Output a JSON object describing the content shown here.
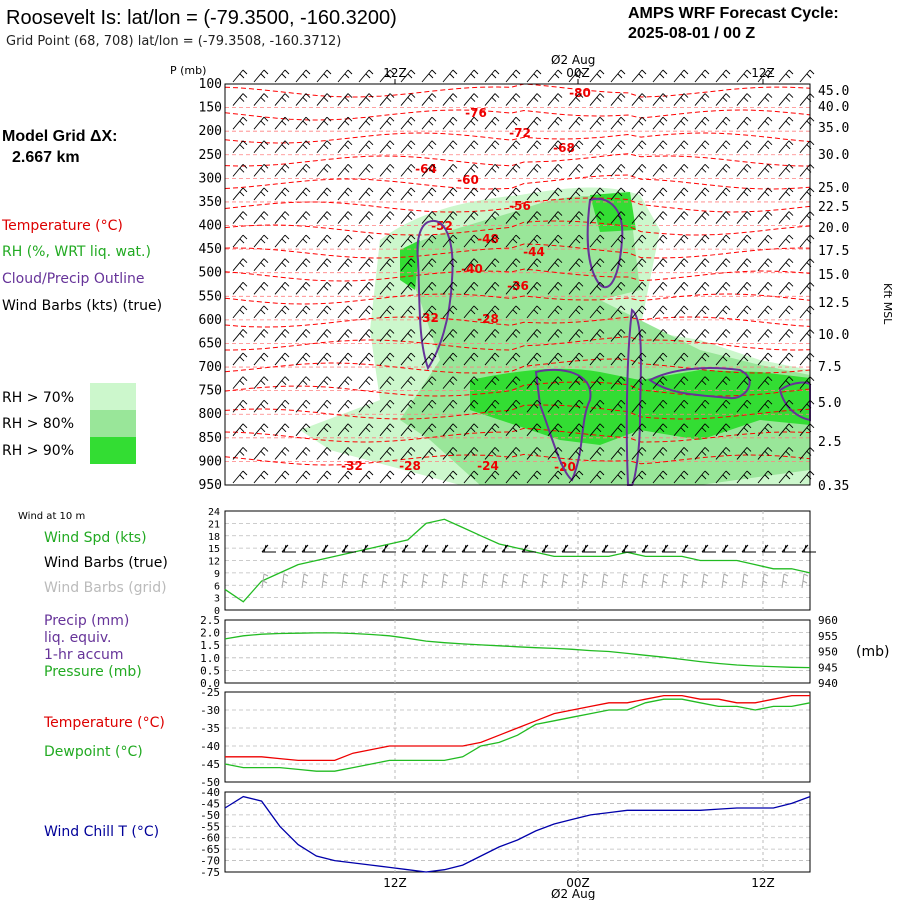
{
  "header": {
    "title": "Roosevelt Is:  lat/lon = (-79.3500, -160.3200)",
    "subtitle": "Grid Point (68, 708) lat/lon = (-79.3508, -160.3712)",
    "cycle_line1": "AMPS WRF Forecast Cycle:",
    "cycle_line2": "2025-08-01 / 00  Z"
  },
  "legend": {
    "model_grid_line1": "Model Grid ΔX:",
    "model_grid_line2": "2.667 km",
    "temperature": "Temperature (°C)",
    "rh": "RH (%, WRT liq. wat.)",
    "cloud": "Cloud/Precip Outline",
    "wind": "Wind Barbs (kts) (true)",
    "rh70": "RH > 70%",
    "rh80": "RH > 80%",
    "rh90": "RH > 90%",
    "colors": {
      "rh70": "#ccf7cc",
      "rh80": "#99e699",
      "rh90": "#33dd33",
      "temp": "#ff0000",
      "cloud": "#663399",
      "wind": "#000000"
    }
  },
  "time_axis": {
    "top_date": "Ø2 Aug",
    "bottom_date": "Ø2 Aug",
    "ticks": [
      "12Z",
      "00Z",
      "12Z"
    ]
  },
  "chart_data": [
    {
      "type": "contour",
      "name": "sounding",
      "ylabel": "P (mb)",
      "yright_label": "Kft MSL",
      "pressure_levels": [
        "100",
        "150",
        "200",
        "250",
        "300",
        "350",
        "400",
        "450",
        "500",
        "550",
        "600",
        "650",
        "700",
        "750",
        "800",
        "850",
        "900",
        "950"
      ],
      "height_ticks": [
        "45.0",
        "40.0",
        "35.0",
        "30.0",
        "25.0",
        "22.5",
        "20.0",
        "17.5",
        "15.0",
        "12.5",
        "10.0",
        "7.5",
        "5.0",
        "2.5",
        "0.35"
      ],
      "temperature_labels": [
        "-80",
        "-76",
        "-72",
        "-68",
        "-64",
        "-60",
        "-56",
        "-52",
        "-48",
        "-44",
        "-40",
        "-36",
        "-32",
        "-28",
        "-32",
        "-28",
        "-24",
        "-20"
      ]
    },
    {
      "type": "line",
      "name": "wind",
      "panel_title": "Wind at 10 m",
      "series_labels": [
        "Wind Spd (kts)",
        "Wind Barbs (true)",
        "Wind Barbs (grid)"
      ],
      "yticks": [
        "24",
        "21",
        "18",
        "15",
        "12",
        "9",
        "6",
        "3",
        "0"
      ],
      "ylim": [
        0,
        24
      ],
      "wind_speed": [
        5,
        2,
        7,
        9,
        11,
        12,
        13,
        14,
        15,
        16,
        17,
        21,
        22,
        20,
        18,
        16,
        15,
        14,
        13,
        13,
        13,
        13,
        14,
        13,
        13,
        13,
        12,
        12,
        12,
        11,
        10,
        10,
        9
      ]
    },
    {
      "type": "line",
      "name": "pressure",
      "series_labels": [
        "Precip (mm)",
        "liq. equiv.",
        "1-hr accum",
        "Pressure (mb)"
      ],
      "yticks_left": [
        "2.5",
        "2.0",
        "1.5",
        "1.0",
        "0.5",
        "0.0"
      ],
      "yticks_right": [
        "960",
        "955",
        "950",
        "945",
        "940"
      ],
      "right_unit": "(mb)",
      "ylim_right": [
        940,
        960
      ],
      "pressure": [
        954,
        955,
        955.5,
        955.7,
        955.8,
        955.9,
        955.9,
        955.7,
        955.4,
        955,
        954.2,
        953.3,
        952.8,
        952.4,
        952.1,
        951.8,
        951.5,
        951.2,
        951,
        950.7,
        950.3,
        950,
        949.4,
        948.8,
        948.2,
        947.5,
        946.8,
        946.2,
        945.7,
        945.4,
        945.2,
        945,
        944.9
      ]
    },
    {
      "type": "line",
      "name": "temperature",
      "series_labels": [
        "Temperature (°C)",
        "Dewpoint (°C)"
      ],
      "yticks": [
        "-25",
        "-30",
        "-35",
        "-40",
        "-45",
        "-50"
      ],
      "ylim": [
        -50,
        -25
      ],
      "temperature": [
        -43,
        -43,
        -43,
        -43.5,
        -44,
        -44,
        -44,
        -42,
        -41,
        -40,
        -40,
        -40,
        -40,
        -40,
        -39,
        -37,
        -35,
        -33,
        -31,
        -30,
        -29,
        -28,
        -28,
        -27,
        -26,
        -26,
        -27,
        -27,
        -28,
        -28,
        -27,
        -26,
        -26
      ],
      "dewpoint": [
        -45,
        -46,
        -46,
        -46,
        -46.5,
        -47,
        -47,
        -46,
        -45,
        -44,
        -44,
        -44,
        -44,
        -43,
        -40,
        -39,
        -37,
        -34,
        -33,
        -32,
        -31,
        -30,
        -30,
        -28,
        -27,
        -27,
        -28,
        -29,
        -29,
        -30,
        -29,
        -29,
        -28
      ]
    },
    {
      "type": "line",
      "name": "wind_chill",
      "series_labels": [
        "Wind Chill T (°C)"
      ],
      "yticks": [
        "-40",
        "-45",
        "-50",
        "-55",
        "-60",
        "-65",
        "-70",
        "-75"
      ],
      "ylim": [
        -75,
        -40
      ],
      "wind_chill": [
        -47,
        -42,
        -44,
        -55,
        -63,
        -68,
        -70,
        -71,
        -72,
        -73,
        -74,
        -75,
        -74,
        -72,
        -68,
        -64,
        -61,
        -57,
        -54,
        -52,
        -50,
        -49,
        -48,
        -48,
        -48,
        -48,
        -48,
        -47.5,
        -47,
        -47,
        -47,
        -45,
        -42
      ]
    }
  ]
}
